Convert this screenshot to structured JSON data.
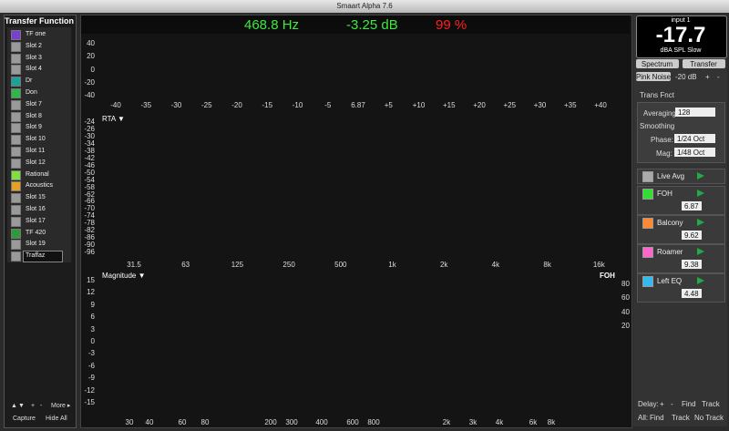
{
  "window_title": "Smaart Alpha 7.6",
  "sidebar": {
    "title": "Transfer Function",
    "items": [
      {
        "label": "TF one",
        "color": "#7a3fd0"
      },
      {
        "label": "Slot 2",
        "color": "#9a9a9a"
      },
      {
        "label": "Slot 3",
        "color": "#9a9a9a"
      },
      {
        "label": "Slot 4",
        "color": "#9a9a9a"
      },
      {
        "label": "Dr",
        "color": "#1aa39a"
      },
      {
        "label": "Don",
        "color": "#2fb84a"
      },
      {
        "label": "Slot 7",
        "color": "#9a9a9a"
      },
      {
        "label": "Slot 8",
        "color": "#9a9a9a"
      },
      {
        "label": "Slot 9",
        "color": "#9a9a9a"
      },
      {
        "label": "Slot 10",
        "color": "#9a9a9a"
      },
      {
        "label": "Slot 11",
        "color": "#9a9a9a"
      },
      {
        "label": "Slot 12",
        "color": "#9a9a9a"
      },
      {
        "label": "Rational",
        "color": "#7fe040"
      },
      {
        "label": "Acoustics",
        "color": "#e8a020"
      },
      {
        "label": "Slot 15",
        "color": "#9a9a9a"
      },
      {
        "label": "Slot 16",
        "color": "#9a9a9a"
      },
      {
        "label": "Slot 17",
        "color": "#9a9a9a"
      },
      {
        "label": "TF 420",
        "color": "#2e9a3a"
      },
      {
        "label": "Slot 19",
        "color": "#9a9a9a"
      },
      {
        "label": "Traffaz",
        "color": "#9a9a9a"
      }
    ],
    "controls": [
      "▲",
      "▼",
      "+",
      "-",
      "More ▸"
    ],
    "buttons": [
      "Capture",
      "Hide All"
    ]
  },
  "readout": {
    "frequency": "468.8 Hz",
    "level": "-3.25 dB",
    "coherence": "99 %"
  },
  "impulse": {
    "y_labels": [
      "40",
      "20",
      "0",
      "-20",
      "-40"
    ],
    "x_labels": [
      "-40",
      "-35",
      "-30",
      "-25",
      "-20",
      "-15",
      "-10",
      "-5",
      "6.87",
      "+5",
      "+10",
      "+15",
      "+20",
      "+25",
      "+30",
      "+35",
      "+40"
    ]
  },
  "rta": {
    "title": "RTA ▼",
    "y_labels": [
      "-24",
      "-26",
      "-30",
      "-34",
      "-38",
      "-42",
      "-46",
      "-50",
      "-54",
      "-58",
      "-62",
      "-66",
      "-70",
      "-74",
      "-78",
      "-82",
      "-86",
      "-90",
      "-96"
    ],
    "x_labels": [
      "31.5",
      "63",
      "125",
      "250",
      "500",
      "1k",
      "2k",
      "4k",
      "8k",
      "16k"
    ]
  },
  "magnitude": {
    "title": "Magnitude ▼",
    "trace_label": "FOH",
    "y_labels": [
      "15",
      "12",
      "9",
      "6",
      "3",
      "0",
      "-3",
      "-6",
      "-9",
      "-12",
      "-15"
    ],
    "y2_labels": [
      "80",
      "60",
      "40",
      "20"
    ],
    "x_labels": [
      "30",
      "40",
      "60",
      "80",
      "200",
      "300",
      "400",
      "600",
      "800",
      "2k",
      "3k",
      "4k",
      "6k",
      "8k"
    ]
  },
  "meter": {
    "input": "input 1",
    "value": "-17.7",
    "unit": "dBA SPL Slow"
  },
  "mode_buttons": [
    "Spectrum",
    "Transfer"
  ],
  "generator": {
    "label": "Pink Noise",
    "level": "-20 dB",
    "plus": "+",
    "minus": "-"
  },
  "settings": {
    "mode": "Trans Fnct",
    "averaging_label": "Averaging:",
    "averaging": "128",
    "smoothing": "Smoothing",
    "phase_label": "Phase:",
    "phase": "1/24 Oct",
    "mag_label": "Mag:",
    "mag": "1/48 Oct"
  },
  "traces": [
    {
      "name": "Live Avg",
      "color": "#aaaaaa"
    },
    {
      "name": "FOH",
      "color": "#33dd33",
      "delay": "6.87"
    },
    {
      "name": "Balcony",
      "color": "#ff8833",
      "delay": "9.62"
    },
    {
      "name": "Roamer",
      "color": "#ff66cc",
      "delay": "9.38"
    },
    {
      "name": "Left EQ",
      "color": "#33bbee",
      "delay": "4.48"
    }
  ],
  "delay_bar": {
    "label": "Delay:",
    "plus": "+",
    "minus": "-",
    "find": "Find",
    "track": "Track"
  },
  "all_bar": {
    "label": "All:",
    "find": "Find",
    "track": "Track",
    "no_track": "No Track"
  }
}
